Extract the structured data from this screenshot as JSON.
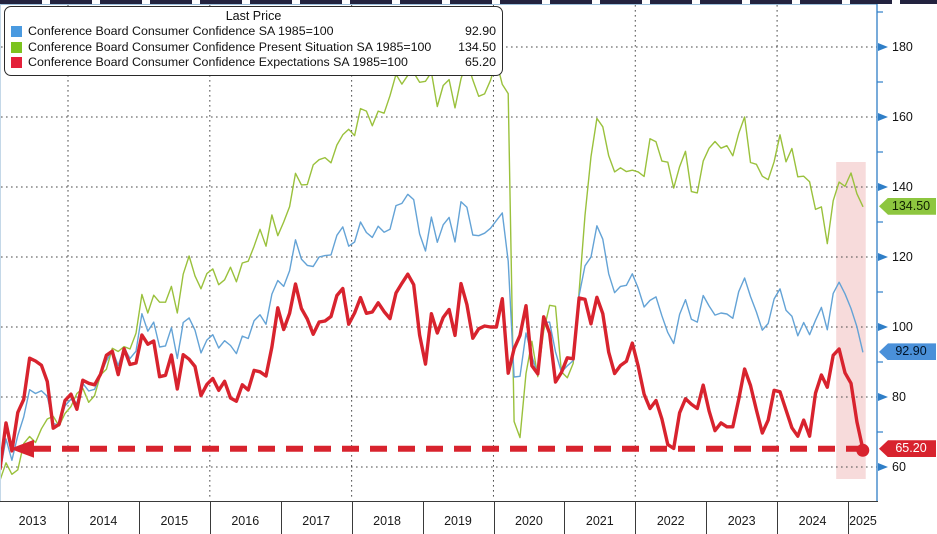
{
  "legend": {
    "title": "Last Price",
    "items": [
      {
        "label": "Conference Board Consumer Confidence SA 1985=100",
        "value": "92.90",
        "color": "#4a9ae0"
      },
      {
        "label": "Conference Board Consumer Confidence Present Situation SA 1985=100",
        "value": "134.50",
        "color": "#7cc31f"
      },
      {
        "label": "Conference Board Consumer Confidence Expectations SA 1985=100",
        "value": "65.20",
        "color": "#e4203a"
      }
    ]
  },
  "axes": {
    "y_major_ticks": [
      60,
      80,
      100,
      120,
      140,
      160,
      180
    ],
    "y_minor_ticks": [
      70,
      90,
      110,
      130,
      150,
      170,
      190
    ],
    "x_years": [
      "2013",
      "2014",
      "2015",
      "2016",
      "2017",
      "2018",
      "2019",
      "2020",
      "2021",
      "2022",
      "2023",
      "2024",
      "2025"
    ],
    "axis_color": "#2f7ec7",
    "gridline_color": "#4a4a4a"
  },
  "badges": [
    {
      "value": "134.50",
      "numeric": 134.5,
      "color": "#8dc63f",
      "text_color": "#102000"
    },
    {
      "value": "92.90",
      "numeric": 92.9,
      "color": "#4a90d9",
      "text_color": "#001428"
    },
    {
      "value": "65.20",
      "numeric": 65.2,
      "color": "#d8232e",
      "text_color": "#ffffff"
    }
  ],
  "annotations": {
    "dashed_line_value": 65.2,
    "dashed_line_color": "#d8232e",
    "highlight_region": {
      "start": "2024-11",
      "end": "2025-04",
      "color": "#eeb0b0"
    }
  },
  "chart_data": {
    "type": "line",
    "title": "Last Price",
    "x_start": "2013-01",
    "x_end": "2025-03",
    "frequency": "monthly",
    "ylim": [
      56,
      192
    ],
    "grid": "dotted",
    "legend_position": "top-left",
    "series": [
      {
        "name": "Conference Board Consumer Confidence SA 1985=100",
        "color": "#64a3d6",
        "last_price": 92.9,
        "values": [
          58.6,
          68.0,
          61.9,
          69.0,
          74.3,
          82.1,
          81.0,
          81.8,
          80.2,
          72.4,
          72.0,
          77.5,
          79.4,
          78.3,
          83.9,
          81.7,
          82.2,
          86.4,
          90.3,
          93.4,
          89.0,
          94.1,
          91.0,
          93.1,
          103.8,
          98.8,
          101.4,
          94.3,
          94.6,
          99.8,
          91.0,
          101.3,
          102.6,
          99.1,
          92.6,
          96.3,
          97.8,
          94.0,
          96.1,
          94.7,
          92.4,
          97.4,
          96.7,
          101.8,
          103.5,
          100.8,
          109.4,
          113.3,
          111.6,
          116.1,
          124.9,
          119.4,
          117.6,
          117.3,
          120.0,
          120.4,
          120.6,
          126.2,
          128.6,
          123.1,
          124.3,
          130.0,
          127.0,
          125.6,
          128.8,
          127.1,
          127.9,
          134.7,
          135.3,
          137.9,
          136.4,
          126.6,
          121.7,
          131.4,
          124.2,
          129.2,
          131.3,
          124.3,
          135.8,
          134.2,
          126.3,
          126.1,
          126.8,
          128.2,
          130.4,
          132.6,
          118.8,
          85.7,
          85.9,
          98.3,
          91.7,
          86.3,
          101.3,
          101.4,
          92.9,
          87.1,
          88.9,
          90.4,
          109.0,
          117.5,
          120.0,
          128.9,
          125.1,
          115.2,
          109.8,
          111.6,
          111.9,
          115.2,
          111.1,
          105.7,
          107.6,
          108.6,
          103.2,
          98.4,
          95.3,
          103.6,
          107.8,
          102.2,
          101.4,
          109.0,
          106.0,
          103.4,
          104.0,
          103.7,
          102.5,
          110.1,
          114.0,
          108.7,
          104.3,
          99.1,
          101.0,
          108.0,
          110.9,
          104.8,
          103.1,
          97.5,
          101.3,
          97.8,
          101.9,
          105.6,
          99.2,
          109.6,
          112.8,
          109.5,
          105.3,
          100.1,
          92.9
        ]
      },
      {
        "name": "Conference Board Consumer Confidence Present Situation SA 1985=100",
        "color": "#9ac13c",
        "last_price": 134.5,
        "values": [
          56.2,
          61.2,
          57.9,
          59.2,
          66.7,
          68.7,
          67.0,
          70.9,
          73.7,
          74.5,
          71.7,
          75.3,
          77.3,
          81.0,
          82.5,
          78.5,
          80.4,
          86.3,
          87.9,
          93.9,
          93.0,
          94.4,
          93.7,
          98.2,
          109.3,
          104.0,
          109.1,
          107.1,
          107.1,
          111.6,
          104.0,
          115.1,
          120.3,
          114.6,
          110.9,
          115.3,
          116.6,
          112.1,
          113.5,
          117.1,
          112.9,
          118.3,
          118.8,
          123.1,
          127.9,
          123.1,
          132.0,
          126.1,
          130.0,
          134.4,
          143.9,
          140.6,
          140.7,
          146.3,
          147.8,
          148.4,
          146.9,
          152.0,
          154.9,
          156.5,
          154.7,
          162.4,
          161.7,
          157.5,
          161.7,
          161.1,
          166.1,
          172.2,
          169.4,
          171.9,
          172.7,
          169.9,
          170.2,
          172.8,
          163.0,
          169.0,
          170.7,
          162.6,
          170.9,
          176.0,
          170.6,
          165.9,
          166.6,
          170.5,
          175.9,
          169.3,
          166.7,
          73.0,
          68.4,
          86.7,
          95.9,
          85.8,
          98.9,
          106.2,
          105.9,
          87.2,
          85.5,
          89.6,
          110.1,
          131.9,
          148.7,
          159.6,
          157.2,
          148.9,
          144.3,
          145.5,
          144.4,
          144.8,
          144.3,
          143.0,
          153.8,
          152.9,
          147.4,
          147.1,
          139.7,
          145.8,
          150.2,
          138.7,
          138.3,
          147.4,
          151.1,
          153.0,
          151.1,
          151.8,
          148.9,
          155.3,
          160.0,
          147.0,
          146.5,
          143.1,
          142.1,
          147.2,
          154.9,
          147.2,
          151.0,
          142.9,
          143.1,
          141.5,
          133.6,
          134.3,
          123.8,
          136.1,
          141.4,
          140.2,
          144.0,
          138.1,
          134.5
        ]
      },
      {
        "name": "Conference Board Consumer Confidence Expectations SA 1985=100",
        "color": "#d8232e",
        "last_price": 65.2,
        "values": [
          59.5,
          72.6,
          64.6,
          75.6,
          79.3,
          91.1,
          90.3,
          89.1,
          84.4,
          71.1,
          72.2,
          79.0,
          80.8,
          76.5,
          84.8,
          83.9,
          83.5,
          86.5,
          91.9,
          93.1,
          86.4,
          93.8,
          89.3,
          89.7,
          97.7,
          95.1,
          96.0,
          85.8,
          86.2,
          92.0,
          82.3,
          92.1,
          90.8,
          88.7,
          80.4,
          83.6,
          85.3,
          81.9,
          84.5,
          79.7,
          78.8,
          83.5,
          82.0,
          87.6,
          87.2,
          86.0,
          94.3,
          105.5,
          99.3,
          103.9,
          112.3,
          105.3,
          102.3,
          97.9,
          101.4,
          101.7,
          103.0,
          109.0,
          111.0,
          100.8,
          104.0,
          108.4,
          103.9,
          104.3,
          106.9,
          104.4,
          102.4,
          109.7,
          112.5,
          115.1,
          112.1,
          97.7,
          89.4,
          103.8,
          98.3,
          102.7,
          105.0,
          97.6,
          112.4,
          106.4,
          96.8,
          99.5,
          100.3,
          100.0,
          100.0,
          108.1,
          86.8,
          93.8,
          97.6,
          106.1,
          88.9,
          86.6,
          102.9,
          98.2,
          84.3,
          87.0,
          91.2,
          90.9,
          108.3,
          107.9,
          100.9,
          108.5,
          103.8,
          92.8,
          86.7,
          89.0,
          90.2,
          95.4,
          88.8,
          80.8,
          76.7,
          79.0,
          73.7,
          66.4,
          65.3,
          75.5,
          79.5,
          77.9,
          76.7,
          83.4,
          76.0,
          70.4,
          72.6,
          71.5,
          71.5,
          79.3,
          88.0,
          83.3,
          76.3,
          69.7,
          73.4,
          81.9,
          81.5,
          76.3,
          71.2,
          68.8,
          73.4,
          68.8,
          81.1,
          86.3,
          82.8,
          91.9,
          93.7,
          86.9,
          83.9,
          72.9,
          65.2
        ]
      }
    ]
  }
}
